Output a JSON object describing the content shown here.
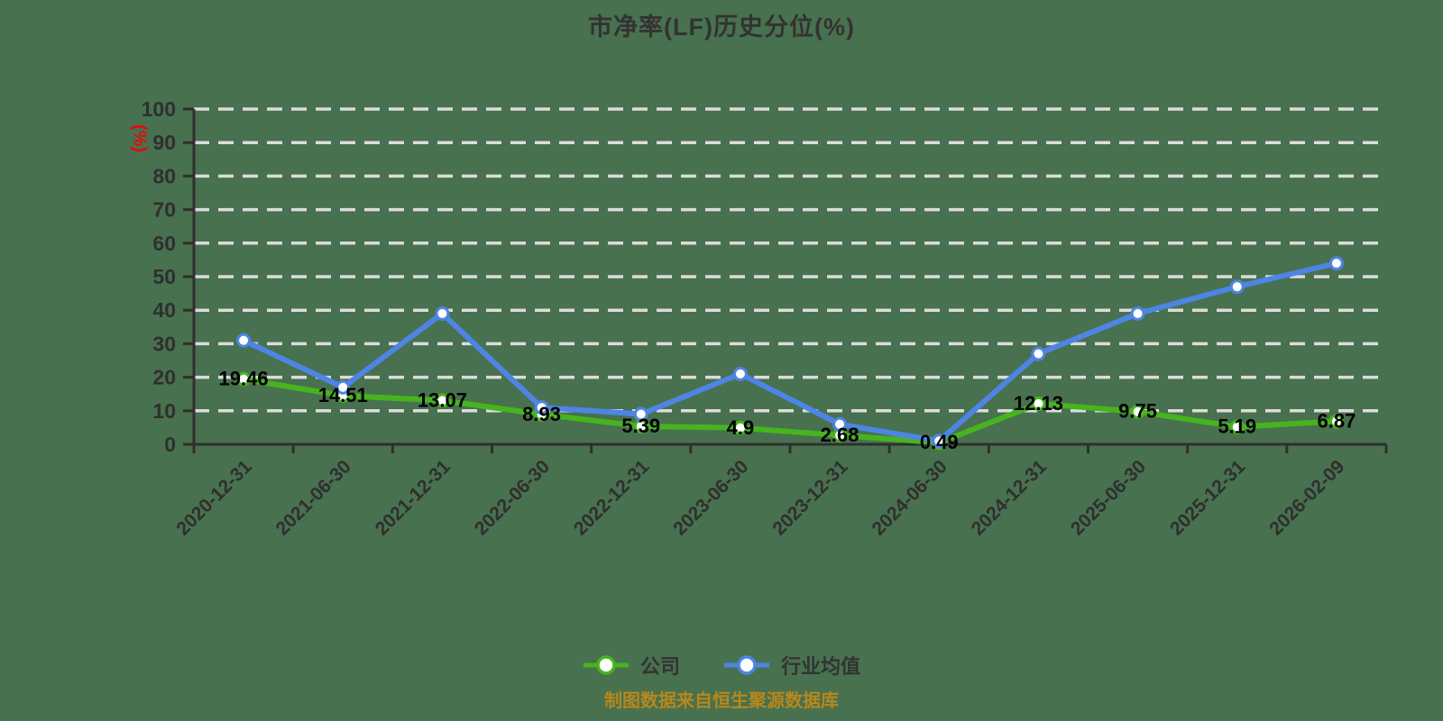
{
  "title": "市净率(LF)历史分位(%)",
  "y_axis_unit": "(%)",
  "footer_note": "制图数据来自恒生聚源数据库",
  "colors": {
    "background": "#48714f",
    "company": "#47b41e",
    "industry": "#4e84e4",
    "grid": "#dcdcdc",
    "axis": "#2f2f2f",
    "data_label": "#000000",
    "title": "#333333",
    "legend_text": "#333333",
    "y_axis_unit": "#e00d0d",
    "footer": "#b8871c",
    "marker_fill": "#ffffff"
  },
  "legend": {
    "items": [
      {
        "key": "company",
        "label": "公司"
      },
      {
        "key": "industry",
        "label": "行业均值"
      }
    ]
  },
  "chart_data": {
    "type": "line",
    "title": "市净率(LF)历史分位(%)",
    "ylabel": "(%)",
    "xlabel": "",
    "ylim": [
      0,
      100
    ],
    "y_tick_step": 10,
    "grid": "horizontal-dashed",
    "legend_position": "bottom-center",
    "x_label_rotation": 45,
    "categories": [
      "2020-12-31",
      "2021-06-30",
      "2021-12-31",
      "2022-06-30",
      "2022-12-31",
      "2023-06-30",
      "2023-12-31",
      "2024-06-30",
      "2024-12-31",
      "2025-06-30",
      "2025-12-31",
      "2026-02-09"
    ],
    "series": [
      {
        "key": "company",
        "name": "公司",
        "values": [
          19.46,
          14.51,
          13.07,
          8.93,
          5.39,
          4.9,
          2.68,
          0.49,
          12.13,
          9.75,
          5.19,
          6.87
        ],
        "labels": [
          "19.46",
          "14.51",
          "13.07",
          "8.93",
          "5.39",
          "4.9",
          "2.68",
          "0.49",
          "12.13",
          "9.75",
          "5.19",
          "6.87"
        ]
      },
      {
        "key": "industry",
        "name": "行业均值",
        "values": [
          31,
          17,
          39,
          11,
          9,
          21,
          6,
          1,
          27,
          39,
          47,
          54
        ],
        "labels": []
      }
    ]
  }
}
